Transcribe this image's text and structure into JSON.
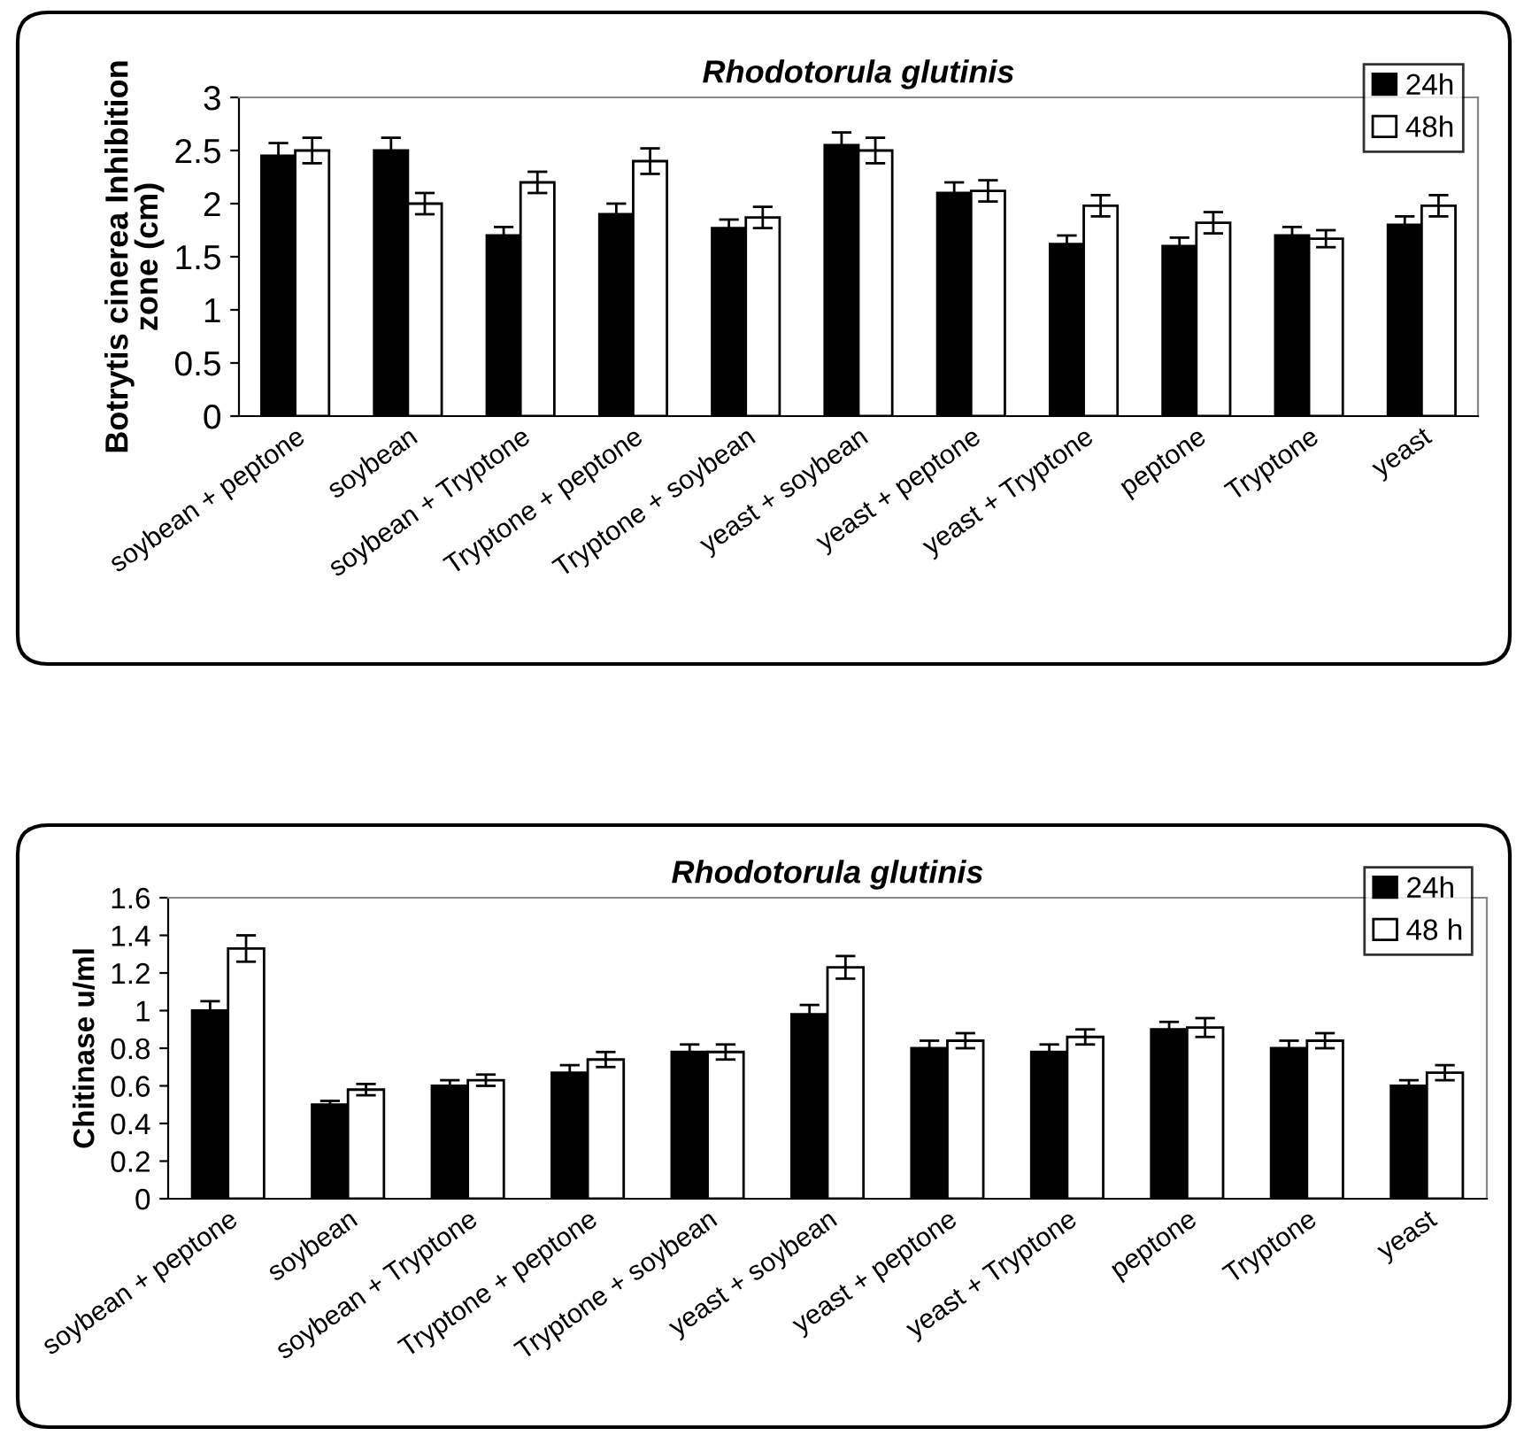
{
  "chart_data": [
    {
      "type": "bar",
      "title": "Rhodotorula glutinis",
      "ylabel": "Botrytis cinerea Inhibition\nzone (cm)",
      "categories": [
        "soybean + peptone",
        "soybean",
        "soybean + Tryptone",
        "Tryptone + peptone",
        "Tryptone + soybean",
        "yeast + soybean",
        "yeast + peptone",
        "yeast + Tryptone",
        "peptone",
        "Tryptone",
        "yeast"
      ],
      "ylim": [
        0,
        3
      ],
      "yticks": [
        0,
        0.5,
        1,
        1.5,
        2,
        2.5,
        3
      ],
      "grid": false,
      "legend": "top right",
      "series": [
        {
          "name": "24h",
          "color": "#000000",
          "values": [
            2.45,
            2.5,
            1.7,
            1.9,
            1.77,
            2.55,
            2.1,
            1.62,
            1.6,
            1.7,
            1.8
          ],
          "errors": [
            0.12,
            0.12,
            0.08,
            0.1,
            0.08,
            0.12,
            0.1,
            0.08,
            0.08,
            0.08,
            0.08
          ]
        },
        {
          "name": "48h",
          "color": "#ffffff",
          "values": [
            2.5,
            2.0,
            2.2,
            2.4,
            1.87,
            2.5,
            2.12,
            1.98,
            1.82,
            1.67,
            1.98
          ],
          "errors": [
            0.12,
            0.1,
            0.1,
            0.12,
            0.1,
            0.12,
            0.1,
            0.1,
            0.1,
            0.08,
            0.1
          ]
        }
      ]
    },
    {
      "type": "bar",
      "title": "Rhodotorula glutinis",
      "ylabel": "Chitinase u/ml",
      "categories": [
        "soybean + peptone",
        "soybean",
        "soybean + Tryptone",
        "Tryptone + peptone",
        "Tryptone + soybean",
        "yeast + soybean",
        "yeast + peptone",
        "yeast + Tryptone",
        "peptone",
        "Tryptone",
        "yeast"
      ],
      "ylim": [
        0,
        1.6
      ],
      "yticks": [
        0,
        0.2,
        0.4,
        0.6,
        0.8,
        1,
        1.2,
        1.4,
        1.6
      ],
      "grid": false,
      "legend": "top right",
      "series": [
        {
          "name": "24h",
          "color": "#000000",
          "values": [
            1.0,
            0.5,
            0.6,
            0.67,
            0.78,
            0.98,
            0.8,
            0.78,
            0.9,
            0.8,
            0.6
          ],
          "errors": [
            0.05,
            0.02,
            0.03,
            0.04,
            0.04,
            0.05,
            0.04,
            0.04,
            0.04,
            0.04,
            0.03
          ]
        },
        {
          "name": "48 h",
          "color": "#ffffff",
          "values": [
            1.33,
            0.58,
            0.63,
            0.74,
            0.78,
            1.23,
            0.84,
            0.86,
            0.91,
            0.84,
            0.67
          ],
          "errors": [
            0.07,
            0.03,
            0.03,
            0.04,
            0.04,
            0.06,
            0.04,
            0.04,
            0.05,
            0.04,
            0.04
          ]
        }
      ]
    }
  ]
}
